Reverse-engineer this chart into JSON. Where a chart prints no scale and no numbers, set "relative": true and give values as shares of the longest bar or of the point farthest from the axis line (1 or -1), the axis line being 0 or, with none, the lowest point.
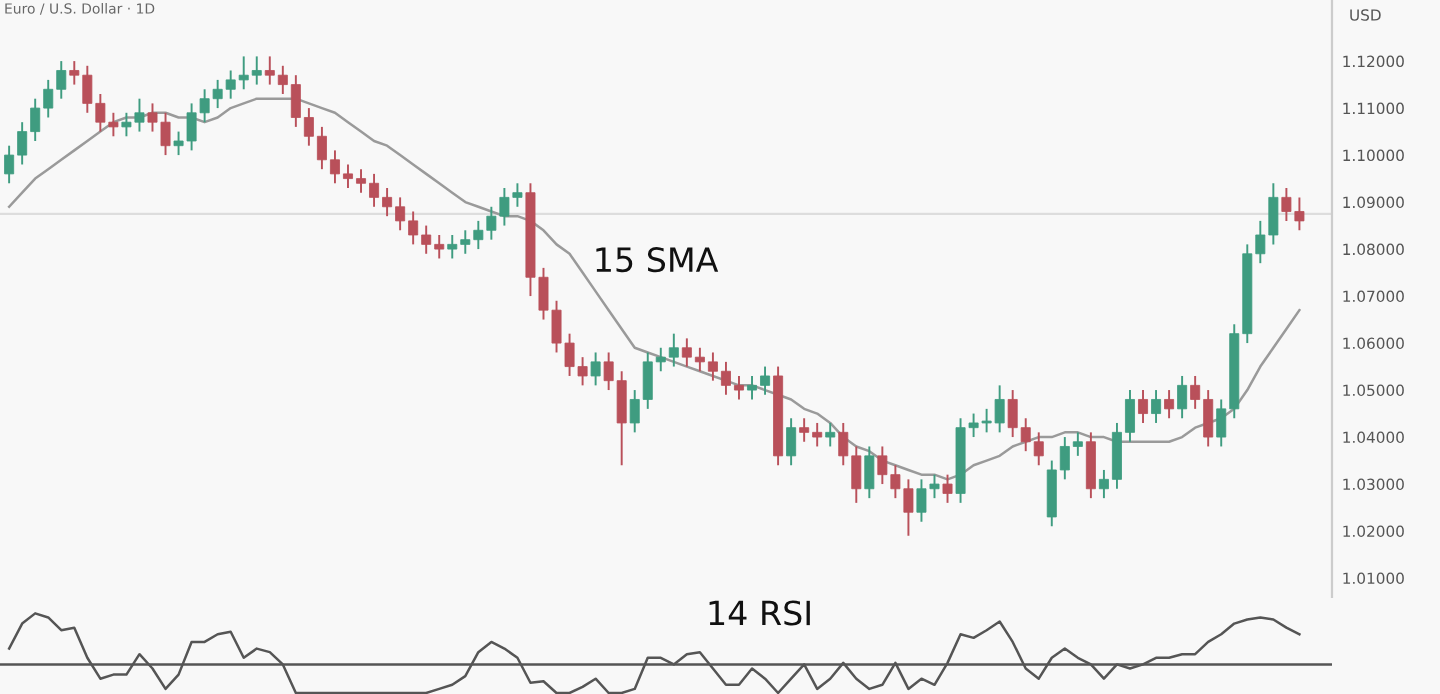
{
  "chart_data": [
    {
      "type": "candlestick",
      "title": "Euro / U.S. Dollar · 1D",
      "ylabel": "USD",
      "categories": [
        null,
        null,
        null,
        null,
        null,
        null,
        null,
        null,
        null,
        null,
        null,
        null,
        null,
        null,
        null,
        null,
        null,
        null,
        null,
        null,
        null,
        null,
        null,
        null,
        null,
        null,
        null,
        null,
        null,
        null,
        null,
        null,
        null,
        null,
        null,
        null,
        null,
        null,
        null,
        null,
        null,
        null,
        null,
        null,
        null,
        null,
        null,
        null,
        null,
        null,
        null,
        null,
        null,
        null,
        null,
        null,
        null,
        null,
        null,
        null,
        null,
        null,
        null,
        null,
        null,
        null,
        null,
        null,
        null,
        null,
        null,
        null,
        null,
        null,
        null,
        null,
        null,
        null,
        null,
        null,
        null,
        null,
        null,
        null,
        null,
        null,
        null,
        null,
        null,
        null,
        null,
        null,
        null,
        null,
        null,
        null,
        null,
        null,
        null,
        null
      ],
      "ohlc": [
        [
          1.096,
          1.102,
          1.094,
          1.1
        ],
        [
          1.1,
          1.107,
          1.098,
          1.105
        ],
        [
          1.105,
          1.112,
          1.103,
          1.11
        ],
        [
          1.11,
          1.116,
          1.108,
          1.114
        ],
        [
          1.114,
          1.12,
          1.112,
          1.118
        ],
        [
          1.118,
          1.12,
          1.115,
          1.117
        ],
        [
          1.117,
          1.119,
          1.109,
          1.111
        ],
        [
          1.111,
          1.113,
          1.105,
          1.107
        ],
        [
          1.107,
          1.109,
          1.104,
          1.106
        ],
        [
          1.106,
          1.109,
          1.104,
          1.107
        ],
        [
          1.107,
          1.112,
          1.105,
          1.109
        ],
        [
          1.109,
          1.111,
          1.105,
          1.107
        ],
        [
          1.107,
          1.109,
          1.1,
          1.102
        ],
        [
          1.102,
          1.105,
          1.1,
          1.103
        ],
        [
          1.103,
          1.111,
          1.101,
          1.109
        ],
        [
          1.109,
          1.114,
          1.107,
          1.112
        ],
        [
          1.112,
          1.116,
          1.11,
          1.114
        ],
        [
          1.114,
          1.118,
          1.112,
          1.116
        ],
        [
          1.116,
          1.121,
          1.114,
          1.117
        ],
        [
          1.117,
          1.121,
          1.115,
          1.118
        ],
        [
          1.118,
          1.121,
          1.115,
          1.117
        ],
        [
          1.117,
          1.119,
          1.113,
          1.115
        ],
        [
          1.115,
          1.117,
          1.106,
          1.108
        ],
        [
          1.108,
          1.11,
          1.102,
          1.104
        ],
        [
          1.104,
          1.106,
          1.097,
          1.099
        ],
        [
          1.099,
          1.101,
          1.094,
          1.096
        ],
        [
          1.096,
          1.098,
          1.093,
          1.095
        ],
        [
          1.095,
          1.097,
          1.092,
          1.094
        ],
        [
          1.094,
          1.096,
          1.089,
          1.091
        ],
        [
          1.091,
          1.093,
          1.087,
          1.089
        ],
        [
          1.089,
          1.091,
          1.084,
          1.086
        ],
        [
          1.086,
          1.088,
          1.081,
          1.083
        ],
        [
          1.083,
          1.085,
          1.079,
          1.081
        ],
        [
          1.081,
          1.083,
          1.078,
          1.08
        ],
        [
          1.08,
          1.083,
          1.078,
          1.081
        ],
        [
          1.081,
          1.084,
          1.079,
          1.082
        ],
        [
          1.082,
          1.086,
          1.08,
          1.084
        ],
        [
          1.084,
          1.089,
          1.082,
          1.087
        ],
        [
          1.087,
          1.093,
          1.085,
          1.091
        ],
        [
          1.091,
          1.094,
          1.089,
          1.092
        ],
        [
          1.092,
          1.094,
          1.07,
          1.074
        ],
        [
          1.074,
          1.076,
          1.065,
          1.067
        ],
        [
          1.067,
          1.069,
          1.058,
          1.06
        ],
        [
          1.06,
          1.062,
          1.053,
          1.055
        ],
        [
          1.055,
          1.057,
          1.051,
          1.053
        ],
        [
          1.053,
          1.058,
          1.051,
          1.056
        ],
        [
          1.056,
          1.058,
          1.05,
          1.052
        ],
        [
          1.052,
          1.054,
          1.034,
          1.043
        ],
        [
          1.043,
          1.05,
          1.041,
          1.048
        ],
        [
          1.048,
          1.058,
          1.046,
          1.056
        ],
        [
          1.056,
          1.059,
          1.054,
          1.057
        ],
        [
          1.057,
          1.062,
          1.055,
          1.059
        ],
        [
          1.059,
          1.061,
          1.055,
          1.057
        ],
        [
          1.057,
          1.059,
          1.054,
          1.056
        ],
        [
          1.056,
          1.058,
          1.052,
          1.054
        ],
        [
          1.054,
          1.056,
          1.049,
          1.051
        ],
        [
          1.051,
          1.053,
          1.048,
          1.05
        ],
        [
          1.05,
          1.053,
          1.048,
          1.051
        ],
        [
          1.051,
          1.055,
          1.049,
          1.053
        ],
        [
          1.053,
          1.055,
          1.034,
          1.036
        ],
        [
          1.036,
          1.044,
          1.034,
          1.042
        ],
        [
          1.042,
          1.044,
          1.039,
          1.041
        ],
        [
          1.041,
          1.043,
          1.038,
          1.04
        ],
        [
          1.04,
          1.043,
          1.038,
          1.041
        ],
        [
          1.041,
          1.043,
          1.034,
          1.036
        ],
        [
          1.036,
          1.038,
          1.026,
          1.029
        ],
        [
          1.029,
          1.038,
          1.027,
          1.036
        ],
        [
          1.036,
          1.038,
          1.03,
          1.032
        ],
        [
          1.032,
          1.034,
          1.027,
          1.029
        ],
        [
          1.029,
          1.031,
          1.019,
          1.024
        ],
        [
          1.024,
          1.031,
          1.022,
          1.029
        ],
        [
          1.029,
          1.032,
          1.027,
          1.03
        ],
        [
          1.03,
          1.032,
          1.026,
          1.028
        ],
        [
          1.028,
          1.044,
          1.026,
          1.042
        ],
        [
          1.042,
          1.045,
          1.04,
          1.043
        ],
        [
          1.043,
          1.046,
          1.041,
          1.043
        ],
        [
          1.043,
          1.051,
          1.041,
          1.048
        ],
        [
          1.048,
          1.05,
          1.04,
          1.042
        ],
        [
          1.042,
          1.044,
          1.037,
          1.039
        ],
        [
          1.039,
          1.041,
          1.034,
          1.036
        ],
        [
          1.023,
          1.035,
          1.021,
          1.033
        ],
        [
          1.033,
          1.04,
          1.031,
          1.038
        ],
        [
          1.038,
          1.041,
          1.036,
          1.039
        ],
        [
          1.039,
          1.041,
          1.027,
          1.029
        ],
        [
          1.029,
          1.033,
          1.027,
          1.031
        ],
        [
          1.031,
          1.043,
          1.029,
          1.041
        ],
        [
          1.041,
          1.05,
          1.039,
          1.048
        ],
        [
          1.048,
          1.05,
          1.043,
          1.045
        ],
        [
          1.045,
          1.05,
          1.043,
          1.048
        ],
        [
          1.048,
          1.05,
          1.044,
          1.046
        ],
        [
          1.046,
          1.053,
          1.044,
          1.051
        ],
        [
          1.051,
          1.053,
          1.046,
          1.048
        ],
        [
          1.048,
          1.05,
          1.038,
          1.04
        ],
        [
          1.04,
          1.048,
          1.038,
          1.046
        ],
        [
          1.046,
          1.064,
          1.044,
          1.062
        ],
        [
          1.062,
          1.081,
          1.06,
          1.079
        ],
        [
          1.079,
          1.086,
          1.077,
          1.083
        ],
        [
          1.083,
          1.094,
          1.081,
          1.091
        ],
        [
          1.091,
          1.093,
          1.086,
          1.088
        ],
        [
          1.088,
          1.091,
          1.084,
          1.086
        ]
      ],
      "series": [
        {
          "type": "line",
          "color": "#9a9a9a",
          "values": [
            1.089,
            1.092,
            1.095,
            1.097,
            1.099,
            1.101,
            1.103,
            1.105,
            1.107,
            1.108,
            1.108,
            1.109,
            1.109,
            1.108,
            1.108,
            1.107,
            1.108,
            1.11,
            1.111,
            1.112,
            1.112,
            1.112,
            1.112,
            1.111,
            1.11,
            1.109,
            1.107,
            1.105,
            1.103,
            1.102,
            1.1,
            1.098,
            1.096,
            1.094,
            1.092,
            1.09,
            1.089,
            1.088,
            1.087,
            1.087,
            1.086,
            1.084,
            1.081,
            1.079,
            1.075,
            1.071,
            1.067,
            1.063,
            1.059,
            1.058,
            1.057,
            1.056,
            1.055,
            1.054,
            1.053,
            1.052,
            1.051,
            1.051,
            1.05,
            1.049,
            1.048,
            1.046,
            1.045,
            1.043,
            1.04,
            1.038,
            1.037,
            1.035,
            1.034,
            1.033,
            1.032,
            1.032,
            1.031,
            1.032,
            1.034,
            1.035,
            1.036,
            1.038,
            1.039,
            1.04,
            1.04,
            1.041,
            1.041,
            1.04,
            1.04,
            1.039,
            1.039,
            1.039,
            1.039,
            1.039,
            1.04,
            1.042,
            1.043,
            1.044,
            1.046,
            1.05,
            1.055,
            1.059,
            1.063,
            1.067
          ]
        }
      ],
      "ylim": [
        1.006,
        1.133
      ],
      "yticks": [
        {
          "value": 1.01,
          "label": "1.01000"
        },
        {
          "value": 1.02,
          "label": "1.02000"
        },
        {
          "value": 1.03,
          "label": "1.03000"
        },
        {
          "value": 1.04,
          "label": "1.04000"
        },
        {
          "value": 1.05,
          "label": "1.05000"
        },
        {
          "value": 1.06,
          "label": "1.06000"
        },
        {
          "value": 1.07,
          "label": "1.07000"
        },
        {
          "value": 1.08,
          "label": "1.08000"
        },
        {
          "value": 1.09,
          "label": "1.09000"
        },
        {
          "value": 1.1,
          "label": "1.10000"
        },
        {
          "value": 1.11,
          "label": "1.11000"
        },
        {
          "value": 1.12,
          "label": "1.12000"
        }
      ],
      "ref_lines": [
        {
          "axis": "y",
          "value": 1.0875,
          "color": "#dddddd",
          "line_style": "solid"
        }
      ],
      "annotations": [
        "15 SMA"
      ],
      "tick_labels": "y",
      "grid": false,
      "legend": false
    },
    {
      "type": "line",
      "relative": true,
      "categories": [
        null,
        null,
        null,
        null,
        null,
        null,
        null,
        null,
        null,
        null,
        null,
        null,
        null,
        null,
        null,
        null,
        null,
        null,
        null,
        null,
        null,
        null,
        null,
        null,
        null,
        null,
        null,
        null,
        null,
        null,
        null,
        null,
        null,
        null,
        null,
        null,
        null,
        null,
        null,
        null,
        null,
        null,
        null,
        null,
        null,
        null,
        null,
        null,
        null,
        null,
        null,
        null,
        null,
        null,
        null,
        null,
        null,
        null,
        null,
        null,
        null,
        null,
        null,
        null,
        null,
        null,
        null,
        null,
        null,
        null,
        null,
        null,
        null,
        null,
        null,
        null,
        null,
        null,
        null,
        null,
        null,
        null,
        null,
        null,
        null,
        null,
        null,
        null,
        null,
        null,
        null,
        null,
        null,
        null,
        null,
        null,
        null,
        null,
        null,
        null
      ],
      "series": [
        {
          "color": "#555555",
          "values": [
            0.31,
            0.8,
            1.0,
            0.92,
            0.67,
            0.72,
            0.13,
            -0.28,
            -0.2,
            -0.2,
            0.2,
            -0.08,
            -0.48,
            -0.2,
            0.44,
            0.44,
            0.59,
            0.64,
            0.13,
            0.31,
            0.24,
            0,
            -0.56,
            -0.56,
            -0.56,
            -0.56,
            -0.56,
            -0.56,
            -0.56,
            -0.56,
            -0.56,
            -0.56,
            -0.56,
            -0.48,
            -0.4,
            -0.23,
            0.24,
            0.44,
            0.31,
            0.13,
            -0.36,
            -0.33,
            -0.56,
            -0.56,
            -0.44,
            -0.28,
            -0.56,
            -0.56,
            -0.48,
            0.13,
            0.13,
            0,
            0.2,
            0.24,
            -0.08,
            -0.4,
            -0.4,
            -0.08,
            -0.28,
            -0.56,
            -0.28,
            0,
            -0.48,
            -0.28,
            0.03,
            -0.28,
            -0.48,
            -0.4,
            0.03,
            -0.48,
            -0.28,
            -0.4,
            0.03,
            0.59,
            0.52,
            0.67,
            0.84,
            0.44,
            -0.08,
            -0.28,
            0.13,
            0.31,
            0.13,
            0,
            -0.28,
            0,
            -0.08,
            0,
            0.13,
            0.13,
            0.2,
            0.2,
            0.44,
            0.59,
            0.8,
            0.88,
            0.92,
            0.88,
            0.72,
            0.59
          ]
        }
      ],
      "annotations": [
        "14 RSI"
      ],
      "tick_labels": false,
      "grid": false,
      "legend": false
    }
  ]
}
